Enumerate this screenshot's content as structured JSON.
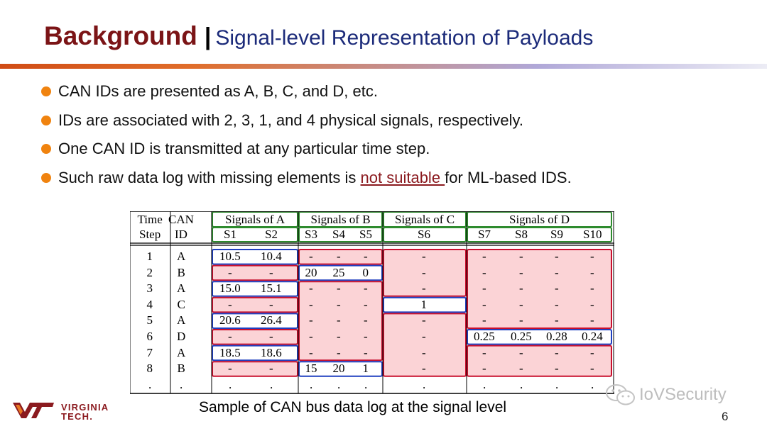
{
  "slide": {
    "title_main": "Background",
    "title_separator": "|",
    "title_sub": "Signal-level Representation of Payloads",
    "bullets": [
      {
        "text": "CAN IDs are presented as A, B, C, and D, etc."
      },
      {
        "text": "IDs are associated with 2, 3, 1, and 4 physical signals, respectively."
      },
      {
        "text": "One CAN ID is transmitted at any particular time step."
      },
      {
        "text_before": "Such raw data log with missing elements is ",
        "link": "not suitable ",
        "text_after": "for ML-based IDS."
      }
    ],
    "caption": "Sample of CAN bus data log at the signal level",
    "page_number": "6",
    "logo_name_line1": "VIRGINIA",
    "logo_name_line2": "TECH.",
    "watermark": "IoVSecurity"
  },
  "colors": {
    "title": "#7b1416",
    "subtitle": "#1c2b7a",
    "bullet": "#f0830f",
    "link": "#8b1a1f",
    "group_header_border": "#2e8b2e",
    "present_box_border": "#1f3fbf",
    "missing_box_border": "#c8102e",
    "missing_box_fill": "#fbd3d6"
  },
  "table": {
    "header_row1": [
      "Time",
      "CAN"
    ],
    "header_row2": [
      "Step",
      "ID"
    ],
    "groups": [
      "Signals of A",
      "Signals of B",
      "Signals of C",
      "Signals of D"
    ],
    "signals": [
      "S1",
      "S2",
      "S3",
      "S4",
      "S5",
      "S6",
      "S7",
      "S8",
      "S9",
      "S10"
    ],
    "rows": [
      {
        "step": "1",
        "id": "A",
        "values": [
          "10.5",
          "10.4",
          "-",
          "-",
          "-",
          "-",
          "-",
          "-",
          "-",
          "-"
        ]
      },
      {
        "step": "2",
        "id": "B",
        "values": [
          "-",
          "-",
          "20",
          "25",
          "0",
          "-",
          "-",
          "-",
          "-",
          "-"
        ]
      },
      {
        "step": "3",
        "id": "A",
        "values": [
          "15.0",
          "15.1",
          "-",
          "-",
          "-",
          "-",
          "-",
          "-",
          "-",
          "-"
        ]
      },
      {
        "step": "4",
        "id": "C",
        "values": [
          "-",
          "-",
          "-",
          "-",
          "-",
          "1",
          "-",
          "-",
          "-",
          "-"
        ]
      },
      {
        "step": "5",
        "id": "A",
        "values": [
          "20.6",
          "26.4",
          "-",
          "-",
          "-",
          "-",
          "-",
          "-",
          "-",
          "-"
        ]
      },
      {
        "step": "6",
        "id": "D",
        "values": [
          "-",
          "-",
          "-",
          "-",
          "-",
          "-",
          "0.25",
          "0.25",
          "0.28",
          "0.24"
        ]
      },
      {
        "step": "7",
        "id": "A",
        "values": [
          "18.5",
          "18.6",
          "-",
          "-",
          "-",
          "-",
          "-",
          "-",
          "-",
          "-"
        ]
      },
      {
        "step": "8",
        "id": "B",
        "values": [
          "-",
          "-",
          "15",
          "20",
          "1",
          "-",
          "-",
          "-",
          "-",
          "-"
        ]
      },
      {
        "step": ".",
        "id": ".",
        "values": [
          ".",
          ".",
          ".",
          ".",
          ".",
          ".",
          ".",
          ".",
          ".",
          "."
        ]
      }
    ]
  }
}
